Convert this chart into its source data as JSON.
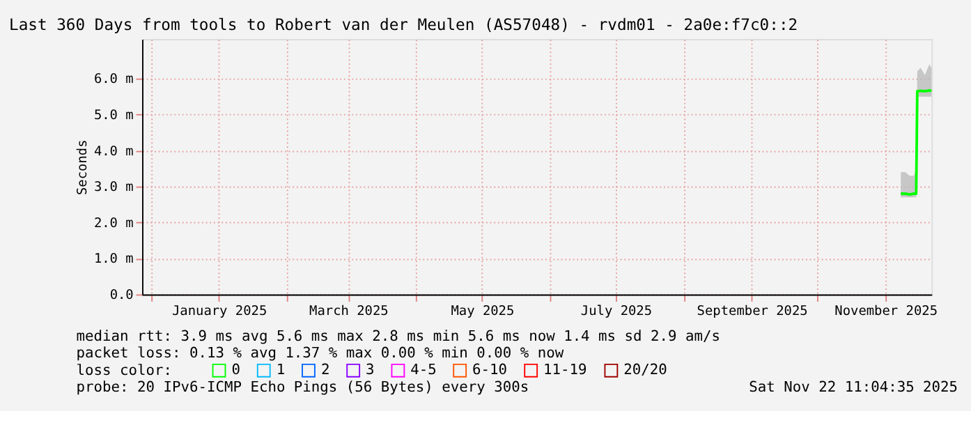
{
  "chart_data": {
    "type": "line",
    "title": "Last 360 Days from tools to Robert van der Meulen (AS57048) - rvdm01 - 2a0e:f7c0::2",
    "ylabel": "Seconds",
    "x": [
      "2025-11-08",
      "2025-11-10",
      "2025-11-12",
      "2025-11-14",
      "2025-11-15",
      "2025-11-15T12:00",
      "2025-11-17",
      "2025-11-19",
      "2025-11-21",
      "2025-11-22"
    ],
    "series": [
      {
        "name": "0",
        "color": "#00ff00",
        "values": [
          2.8,
          2.8,
          2.78,
          2.8,
          2.8,
          5.65,
          5.66,
          5.65,
          5.67,
          5.66
        ],
        "lower": [
          2.7,
          2.7,
          2.7,
          2.7,
          2.7,
          5.5,
          5.5,
          5.5,
          5.5,
          5.5
        ],
        "upper": [
          3.4,
          3.4,
          3.3,
          3.3,
          3.5,
          6.2,
          6.3,
          6.1,
          6.4,
          6.3
        ]
      },
      {
        "name": "1",
        "color": "#00bbff",
        "values": [
          null,
          null,
          null,
          null,
          null,
          null,
          null,
          null,
          null,
          null
        ]
      },
      {
        "name": "2",
        "color": "#0066ff",
        "values": [
          null,
          null,
          null,
          null,
          null,
          null,
          null,
          null,
          null,
          null
        ]
      },
      {
        "name": "3",
        "color": "#8800ff",
        "values": [
          null,
          null,
          null,
          null,
          null,
          null,
          null,
          null,
          null,
          null
        ]
      },
      {
        "name": "4-5",
        "color": "#ff00ff",
        "values": [
          null,
          null,
          null,
          null,
          null,
          null,
          null,
          null,
          null,
          null
        ]
      },
      {
        "name": "6-10",
        "color": "#ff5500",
        "values": [
          null,
          null,
          null,
          null,
          null,
          null,
          null,
          null,
          null,
          null
        ]
      },
      {
        "name": "11-19",
        "color": "#ff0000",
        "values": [
          null,
          null,
          null,
          null,
          null,
          null,
          null,
          null,
          null,
          null
        ]
      },
      {
        "name": "20/20",
        "color": "#a00000",
        "values": [
          null,
          null,
          null,
          null,
          null,
          null,
          null,
          null,
          null,
          null
        ]
      }
    ],
    "legend_title": "loss color:",
    "legend": "bottom",
    "xlim": [
      "2024-11-27",
      "2025-11-22"
    ],
    "xticks": [
      {
        "value": "2024-12-01",
        "label": null
      },
      {
        "value": "2025-01-01",
        "label": "January 2025"
      },
      {
        "value": "2025-02-01",
        "label": null
      },
      {
        "value": "2025-03-01",
        "label": "March 2025"
      },
      {
        "value": "2025-04-01",
        "label": null
      },
      {
        "value": "2025-05-01",
        "label": "May 2025"
      },
      {
        "value": "2025-06-01",
        "label": null
      },
      {
        "value": "2025-07-01",
        "label": "July 2025"
      },
      {
        "value": "2025-08-01",
        "label": null
      },
      {
        "value": "2025-09-01",
        "label": "September 2025"
      },
      {
        "value": "2025-10-01",
        "label": null
      },
      {
        "value": "2025-11-01",
        "label": "November 2025"
      }
    ],
    "ylim": [
      0,
      7.1
    ],
    "yticks": [
      {
        "value": 0,
        "label": "0.0"
      },
      {
        "value": 1,
        "label": "1.0 m"
      },
      {
        "value": 2,
        "label": "2.0 m"
      },
      {
        "value": 3,
        "label": "3.0 m"
      },
      {
        "value": 4,
        "label": "4.0 m"
      },
      {
        "value": 5,
        "label": "5.0 m"
      },
      {
        "value": 6,
        "label": "6.0 m"
      }
    ],
    "grid": true,
    "marker": "none",
    "line_style": "solid",
    "annotations": [
      "median rtt:  3.9 ms avg  5.6 ms max  2.8 ms min  5.6 ms now  1.4 ms sd  2.9   am/s",
      "packet loss: 0.13 % avg  1.37 % max  0.00 % min  0.00 % now",
      "probe:       20 IPv6-ICMP Echo Pings (56 Bytes) every 300s",
      "Sat Nov 22 11:04:35 2025"
    ]
  }
}
